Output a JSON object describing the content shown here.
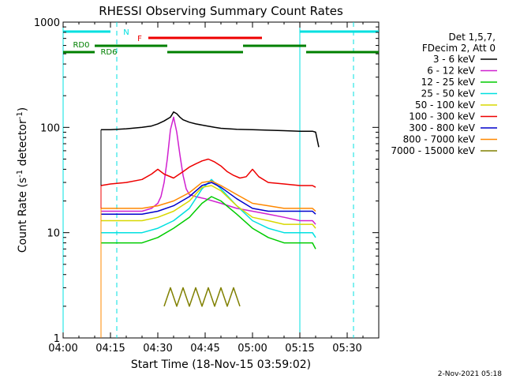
{
  "chart_data": {
    "type": "line",
    "title": "RHESSI Observing Summary Count Rates",
    "xlabel": "Start Time (18-Nov-15 03:59:02)",
    "ylabel_main": "Count Rate (s",
    "ylabel_sup1": "-1",
    "ylabel_mid": " detector",
    "ylabel_sup2": "-1",
    "ylabel_end": ")",
    "yscale": "log",
    "ylim": [
      1,
      1000
    ],
    "xlim_minutes": [
      0,
      100
    ],
    "x_tick_minutes": [
      0,
      15,
      30,
      45,
      60,
      75,
      90
    ],
    "x_tick_labels": [
      "04:00",
      "04:15",
      "04:30",
      "04:45",
      "05:00",
      "05:15",
      "05:30"
    ],
    "y_tick_values": [
      1,
      10,
      100,
      1000
    ],
    "y_tick_labels": [
      "1",
      "10",
      "100",
      "1000"
    ],
    "legend_header": [
      "Det 1,5,7,",
      "FDecim 2, Att 0"
    ],
    "series": [
      {
        "name": "3 - 6 keV",
        "color": "#000000",
        "x": [
          12,
          15,
          20,
          25,
          28,
          30,
          32,
          34,
          35,
          36,
          37,
          38,
          40,
          42,
          45,
          48,
          50,
          55,
          60,
          65,
          70,
          75,
          79,
          80,
          81
        ],
        "y": [
          95,
          95,
          97,
          100,
          103,
          108,
          115,
          125,
          140,
          135,
          125,
          118,
          112,
          108,
          104,
          100,
          98,
          96,
          95,
          94,
          93,
          92,
          92,
          90,
          65
        ]
      },
      {
        "name": "6 - 12 keV",
        "color": "#d020d0",
        "x": [
          12,
          15,
          20,
          25,
          28,
          30,
          31,
          32,
          33,
          34,
          35,
          36,
          37,
          38,
          39,
          40,
          42,
          45,
          50,
          55,
          60,
          65,
          70,
          75,
          79,
          80
        ],
        "y": [
          16,
          16,
          16,
          16,
          17,
          19,
          22,
          30,
          50,
          95,
          125,
          90,
          55,
          35,
          26,
          23,
          22,
          21,
          19,
          17,
          16,
          15,
          14,
          13,
          13,
          12
        ]
      },
      {
        "name": "12 - 25 keV",
        "color": "#00cc00",
        "x": [
          12,
          15,
          20,
          25,
          30,
          35,
          40,
          44,
          47,
          50,
          55,
          60,
          65,
          70,
          75,
          79,
          80
        ],
        "y": [
          8,
          8,
          8,
          8,
          9,
          11,
          14,
          19,
          22,
          20,
          15,
          11,
          9,
          8,
          8,
          8,
          7
        ]
      },
      {
        "name": "25 - 50 keV",
        "color": "#00e0e0",
        "x": [
          12,
          15,
          20,
          25,
          30,
          35,
          40,
          44,
          47,
          50,
          55,
          60,
          65,
          70,
          75,
          79,
          80
        ],
        "y": [
          10,
          10,
          10,
          10,
          11,
          13,
          17,
          26,
          32,
          26,
          18,
          13,
          11,
          10,
          10,
          10,
          9
        ]
      },
      {
        "name": "50 - 100 keV",
        "color": "#d8d800",
        "x": [
          12,
          15,
          20,
          25,
          30,
          35,
          40,
          44,
          47,
          50,
          55,
          60,
          65,
          70,
          75,
          79,
          80
        ],
        "y": [
          13,
          13,
          13,
          13,
          14,
          16,
          20,
          27,
          28,
          25,
          18,
          14,
          13,
          12,
          12,
          12,
          11
        ]
      },
      {
        "name": "100 - 300 keV",
        "color": "#ee0000",
        "x": [
          12,
          15,
          20,
          25,
          28,
          30,
          32,
          35,
          38,
          40,
          42,
          44,
          46,
          48,
          50,
          52,
          54,
          56,
          58,
          60,
          62,
          65,
          70,
          75,
          79,
          80
        ],
        "y": [
          28,
          29,
          30,
          32,
          36,
          40,
          36,
          33,
          38,
          42,
          45,
          48,
          50,
          47,
          43,
          38,
          35,
          33,
          34,
          40,
          34,
          30,
          29,
          28,
          28,
          27
        ]
      },
      {
        "name": "300 - 800 keV",
        "color": "#0000cc",
        "x": [
          12,
          15,
          20,
          25,
          30,
          35,
          40,
          44,
          47,
          50,
          55,
          60,
          65,
          70,
          75,
          79,
          80
        ],
        "y": [
          15,
          15,
          15,
          15,
          16,
          18,
          22,
          28,
          30,
          27,
          21,
          17,
          16,
          16,
          16,
          16,
          15
        ]
      },
      {
        "name": "800 - 7000 keV",
        "color": "#ff8800",
        "x": [
          12,
          15,
          20,
          25,
          30,
          35,
          40,
          44,
          47,
          50,
          55,
          60,
          65,
          70,
          75,
          79,
          80
        ],
        "y": [
          17,
          17,
          17,
          17,
          18,
          20,
          24,
          30,
          31,
          28,
          23,
          19,
          18,
          17,
          17,
          17,
          16
        ]
      },
      {
        "name": "7000 - 15000 keV",
        "color": "#808000",
        "x": [
          32,
          34,
          36,
          38,
          40,
          42,
          44,
          46,
          48,
          50,
          52,
          54,
          56
        ],
        "y": [
          2,
          3,
          2,
          3,
          2,
          3,
          2,
          3,
          2,
          3,
          2,
          3,
          2
        ]
      }
    ],
    "flag_bars": [
      {
        "label": "N",
        "color": "#00e0e0",
        "segments": [
          [
            0,
            15
          ],
          [
            75,
            100
          ]
        ]
      },
      {
        "label": "F",
        "color": "#ee0000",
        "segments": [
          [
            27,
            63
          ]
        ]
      },
      {
        "label": "RD0",
        "color": "#008000",
        "segments": [
          [
            10,
            33
          ],
          [
            57,
            77
          ]
        ]
      },
      {
        "label": "RD6",
        "color": "#008000",
        "segments": [
          [
            0,
            10
          ],
          [
            33,
            57
          ],
          [
            77,
            100
          ]
        ]
      }
    ],
    "orbit_lines_solid": [
      0,
      75
    ],
    "orbit_lines_dashed": [
      17,
      92
    ]
  },
  "footer_timestamp": "2-Nov-2021 05:18"
}
